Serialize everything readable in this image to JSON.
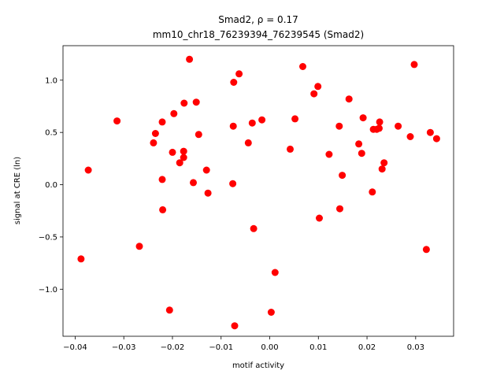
{
  "chart_data": {
    "type": "scatter",
    "title_line1": "Smad2, ρ = 0.17",
    "title_line2": "mm10_chr18_76239394_76239545 (Smad2)",
    "xlabel": "motif activity",
    "ylabel": "signal at CRE (ln)",
    "xlim": [
      -0.0425,
      0.0378
    ],
    "ylim": [
      -1.45,
      1.33
    ],
    "xticks": [
      -0.04,
      -0.03,
      -0.02,
      -0.01,
      0.0,
      0.01,
      0.02,
      0.03
    ],
    "xtick_labels": [
      "−0.04",
      "−0.03",
      "−0.02",
      "−0.01",
      "0.00",
      "0.01",
      "0.02",
      "0.03"
    ],
    "yticks": [
      -1.0,
      -0.5,
      0.0,
      0.5,
      1.0
    ],
    "ytick_labels": [
      "−1.0",
      "−0.5",
      "0.0",
      "0.5",
      "1.0"
    ],
    "marker_color": "#ff0000",
    "grid": false,
    "points": [
      {
        "x": -0.0388,
        "y": -0.71
      },
      {
        "x": -0.0373,
        "y": 0.14
      },
      {
        "x": -0.0314,
        "y": 0.61
      },
      {
        "x": -0.0268,
        "y": -0.59
      },
      {
        "x": -0.0239,
        "y": 0.4
      },
      {
        "x": -0.0235,
        "y": 0.49
      },
      {
        "x": -0.0221,
        "y": 0.6
      },
      {
        "x": -0.0221,
        "y": 0.05
      },
      {
        "x": -0.022,
        "y": -0.24
      },
      {
        "x": -0.0206,
        "y": -1.2
      },
      {
        "x": -0.02,
        "y": 0.31
      },
      {
        "x": -0.0197,
        "y": 0.68
      },
      {
        "x": -0.0185,
        "y": 0.21
      },
      {
        "x": -0.0177,
        "y": 0.32
      },
      {
        "x": -0.0177,
        "y": 0.26
      },
      {
        "x": -0.0176,
        "y": 0.78
      },
      {
        "x": -0.0165,
        "y": 1.2
      },
      {
        "x": -0.0157,
        "y": 0.02
      },
      {
        "x": -0.0151,
        "y": 0.79
      },
      {
        "x": -0.0146,
        "y": 0.48
      },
      {
        "x": -0.013,
        "y": 0.14
      },
      {
        "x": -0.0127,
        "y": -0.08
      },
      {
        "x": -0.0076,
        "y": 0.01
      },
      {
        "x": -0.0075,
        "y": 0.56
      },
      {
        "x": -0.0074,
        "y": 0.98
      },
      {
        "x": -0.0072,
        "y": -1.35
      },
      {
        "x": -0.0063,
        "y": 1.06
      },
      {
        "x": -0.0044,
        "y": 0.4
      },
      {
        "x": -0.0036,
        "y": 0.59
      },
      {
        "x": -0.0033,
        "y": -0.42
      },
      {
        "x": -0.0016,
        "y": 0.62
      },
      {
        "x": 0.0003,
        "y": -1.22
      },
      {
        "x": 0.0011,
        "y": -0.84
      },
      {
        "x": 0.0042,
        "y": 0.34
      },
      {
        "x": 0.0052,
        "y": 0.63
      },
      {
        "x": 0.0068,
        "y": 1.13
      },
      {
        "x": 0.0091,
        "y": 0.87
      },
      {
        "x": 0.0099,
        "y": 0.94
      },
      {
        "x": 0.0102,
        "y": -0.32
      },
      {
        "x": 0.0122,
        "y": 0.29
      },
      {
        "x": 0.0143,
        "y": 0.56
      },
      {
        "x": 0.0144,
        "y": -0.23
      },
      {
        "x": 0.0149,
        "y": 0.09
      },
      {
        "x": 0.0163,
        "y": 0.82
      },
      {
        "x": 0.0183,
        "y": 0.39
      },
      {
        "x": 0.0189,
        "y": 0.3
      },
      {
        "x": 0.0192,
        "y": 0.64
      },
      {
        "x": 0.0211,
        "y": -0.07
      },
      {
        "x": 0.0213,
        "y": 0.53
      },
      {
        "x": 0.022,
        "y": 0.53
      },
      {
        "x": 0.0225,
        "y": 0.54
      },
      {
        "x": 0.0226,
        "y": 0.6
      },
      {
        "x": 0.0231,
        "y": 0.15
      },
      {
        "x": 0.0235,
        "y": 0.21
      },
      {
        "x": 0.0264,
        "y": 0.56
      },
      {
        "x": 0.0289,
        "y": 0.46
      },
      {
        "x": 0.0297,
        "y": 1.15
      },
      {
        "x": 0.0322,
        "y": -0.62
      },
      {
        "x": 0.033,
        "y": 0.5
      },
      {
        "x": 0.0343,
        "y": 0.44
      }
    ]
  }
}
